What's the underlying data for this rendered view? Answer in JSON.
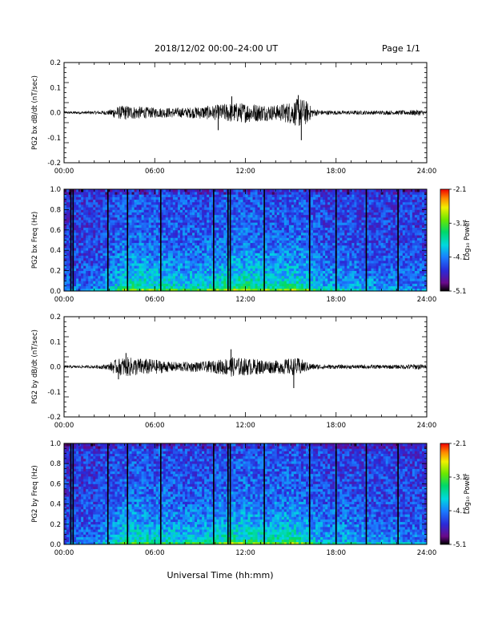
{
  "header": {
    "title": "2018/12/02  00:00–24:00 UT",
    "page": "Page 1/1"
  },
  "footer": {
    "xlabel": "Universal Time (hh:mm)"
  },
  "chart_data": [
    {
      "type": "line",
      "ylabel": "PG2 bx dB/dt (nT/sec)",
      "xlim": [
        0,
        24
      ],
      "ylim": [
        -0.2,
        0.2
      ],
      "xticks": [
        "00:00",
        "06:00",
        "12:00",
        "18:00",
        "24:00"
      ],
      "yticks": [
        "0.2",
        "0.1",
        "0.0",
        "-0.1",
        "-0.2"
      ],
      "envelope": {
        "x": [
          0,
          2,
          3,
          3.2,
          4,
          5,
          6,
          7,
          8,
          9,
          10,
          11,
          12,
          13,
          14,
          15,
          15.6,
          16,
          16.5,
          17,
          18,
          20,
          22,
          23.5,
          24
        ],
        "amp": [
          0.005,
          0.006,
          0.01,
          0.02,
          0.03,
          0.025,
          0.02,
          0.02,
          0.02,
          0.025,
          0.03,
          0.04,
          0.04,
          0.035,
          0.03,
          0.045,
          0.06,
          0.05,
          0.015,
          0.01,
          0.008,
          0.008,
          0.008,
          0.012,
          0.006
        ]
      },
      "extremes": [
        {
          "x": 15.7,
          "y": -0.11
        },
        {
          "x": 10.2,
          "y": -0.07
        },
        {
          "x": 15.5,
          "y": 0.07
        },
        {
          "x": 11.1,
          "y": 0.065
        }
      ]
    },
    {
      "type": "heatmap",
      "ylabel": "PG2 bx Freq (Hz)",
      "xlim": [
        0,
        24
      ],
      "ylim": [
        0,
        1.0
      ],
      "xticks": [
        "00:00",
        "06:00",
        "12:00",
        "18:00",
        "24:00"
      ],
      "yticks": [
        "1.0",
        "0.8",
        "0.6",
        "0.4",
        "0.2",
        "0.0"
      ],
      "colorbar": {
        "label": "Log₁₀ Power",
        "ticks": [
          "-2.1",
          "-3.1",
          "-4.1",
          "-5.1"
        ],
        "range": [
          -5.1,
          -2.1
        ]
      },
      "gap_lines": [
        0.45,
        0.6,
        2.9,
        4.2,
        6.4,
        9.9,
        10.85,
        11.0,
        13.25,
        16.25,
        18.0,
        20.0,
        22.1
      ],
      "activity": {
        "x": [
          0,
          2,
          3,
          4,
          5,
          6,
          8,
          10,
          11,
          12,
          13,
          14,
          15,
          16,
          17,
          18,
          20,
          22,
          24
        ],
        "level": [
          0.15,
          0.2,
          0.35,
          0.55,
          0.6,
          0.55,
          0.45,
          0.55,
          0.65,
          0.65,
          0.6,
          0.55,
          0.6,
          0.55,
          0.35,
          0.35,
          0.3,
          0.25,
          0.2
        ]
      }
    },
    {
      "type": "line",
      "ylabel": "PG2 by dB/dt (nT/sec)",
      "xlim": [
        0,
        24
      ],
      "ylim": [
        -0.2,
        0.2
      ],
      "xticks": [
        "00:00",
        "06:00",
        "12:00",
        "18:00",
        "24:00"
      ],
      "yticks": [
        "0.2",
        "0.1",
        "0.0",
        "-0.1",
        "-0.2"
      ],
      "envelope": {
        "x": [
          0,
          2,
          3,
          3.2,
          4,
          5,
          6,
          7,
          8,
          9,
          10,
          11,
          12,
          13,
          14,
          15,
          15.6,
          16,
          16.5,
          17,
          18,
          20,
          22,
          23.5,
          24
        ],
        "amp": [
          0.005,
          0.006,
          0.012,
          0.025,
          0.04,
          0.035,
          0.03,
          0.02,
          0.02,
          0.02,
          0.025,
          0.04,
          0.035,
          0.03,
          0.025,
          0.035,
          0.035,
          0.02,
          0.012,
          0.01,
          0.008,
          0.008,
          0.008,
          0.012,
          0.006
        ]
      },
      "extremes": [
        {
          "x": 15.2,
          "y": -0.085
        },
        {
          "x": 11.05,
          "y": 0.07
        },
        {
          "x": 4.1,
          "y": 0.055
        },
        {
          "x": 3.6,
          "y": -0.05
        }
      ]
    },
    {
      "type": "heatmap",
      "ylabel": "PG2 by Freq (Hz)",
      "xlim": [
        0,
        24
      ],
      "ylim": [
        0,
        1.0
      ],
      "xticks": [
        "00:00",
        "06:00",
        "12:00",
        "18:00",
        "24:00"
      ],
      "yticks": [
        "1.0",
        "0.8",
        "0.6",
        "0.4",
        "0.2",
        "0.0"
      ],
      "colorbar": {
        "label": "Log₁₀ Power",
        "ticks": [
          "-2.1",
          "-3.1",
          "-4.1",
          "-5.1"
        ],
        "range": [
          -5.1,
          -2.1
        ]
      },
      "gap_lines": [
        0.45,
        0.6,
        2.9,
        4.2,
        6.4,
        9.9,
        10.85,
        11.0,
        13.25,
        16.25,
        18.0,
        20.0,
        22.1
      ],
      "activity": {
        "x": [
          0,
          2,
          3,
          4,
          5,
          6,
          8,
          10,
          11,
          12,
          13,
          14,
          15,
          16,
          17,
          18,
          20,
          22,
          24
        ],
        "level": [
          0.15,
          0.2,
          0.35,
          0.55,
          0.55,
          0.5,
          0.45,
          0.5,
          0.6,
          0.6,
          0.55,
          0.55,
          0.6,
          0.5,
          0.35,
          0.35,
          0.3,
          0.25,
          0.2
        ]
      }
    }
  ]
}
